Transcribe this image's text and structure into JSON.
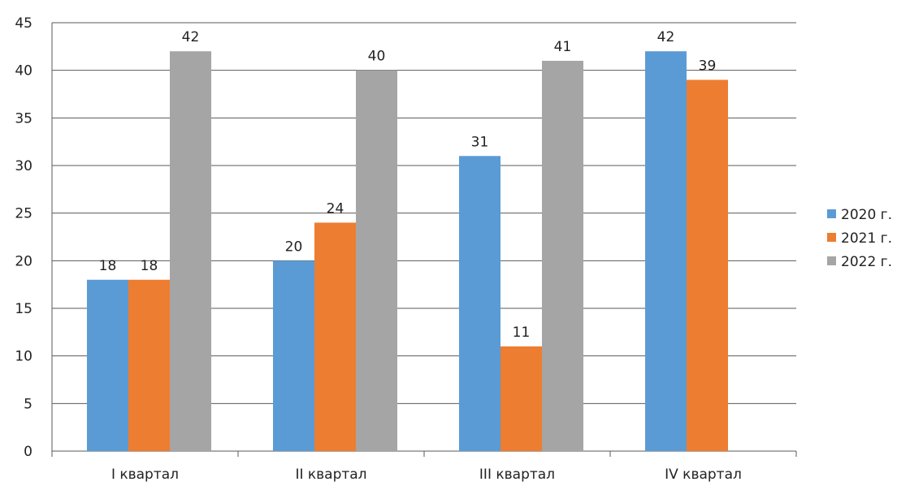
{
  "chart_data": {
    "type": "bar",
    "categories": [
      "I квартал",
      "II квартал",
      "III квартал",
      "IV квартал"
    ],
    "series": [
      {
        "name": "2020 г.",
        "color": "#5b9bd5",
        "values": [
          18,
          20,
          31,
          42
        ]
      },
      {
        "name": "2021 г.",
        "color": "#ed7d31",
        "values": [
          18,
          24,
          11,
          39
        ]
      },
      {
        "name": "2022 г.",
        "color": "#a5a5a5",
        "values": [
          42,
          40,
          41,
          null
        ]
      }
    ],
    "ylim": [
      0,
      45
    ],
    "yticks": [
      0,
      5,
      10,
      15,
      20,
      25,
      30,
      35,
      40,
      45
    ],
    "grid": true,
    "legend_position": "right",
    "data_labels": true
  }
}
